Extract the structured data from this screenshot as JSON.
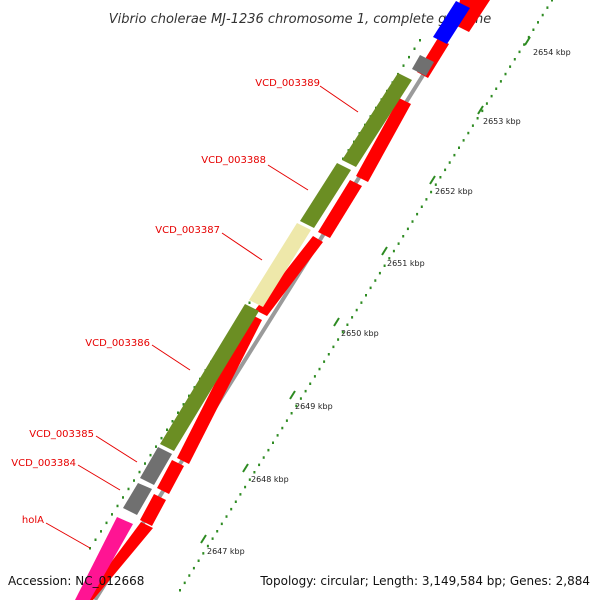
{
  "title": "Vibrio cholerae MJ-1236 chromosome 1, complete genome",
  "footer": {
    "accession": "Accession: NC_012668",
    "summary": "Topology: circular; Length: 3,149,584 bp; Genes: 2,884"
  },
  "colors": {
    "backbone": "#9a9a9a",
    "reverse_strand_gene": "#ff0000",
    "label": "#e60000",
    "tick": "#2e8b22",
    "hypothetical": "#6b8e23",
    "pseudo_pale": "#eee8aa",
    "gray_gene": "#707070",
    "pink_gene": "#ff1493",
    "blue_gene": "#0000ff"
  },
  "scale": {
    "unit": "kbp",
    "ticks": [
      {
        "label": "2647 kbp"
      },
      {
        "label": "2648 kbp"
      },
      {
        "label": "2649 kbp"
      },
      {
        "label": "2650 kbp"
      },
      {
        "label": "2651 kbp"
      },
      {
        "label": "2652 kbp"
      },
      {
        "label": "2653 kbp"
      },
      {
        "label": "2654 kbp"
      }
    ]
  },
  "gene_labels": [
    {
      "text": "VCD_003389"
    },
    {
      "text": "VCD_003388"
    },
    {
      "text": "VCD_003387"
    },
    {
      "text": "VCD_003386"
    },
    {
      "text": "VCD_003385"
    },
    {
      "text": "VCD_003384"
    },
    {
      "text": "holA"
    }
  ]
}
